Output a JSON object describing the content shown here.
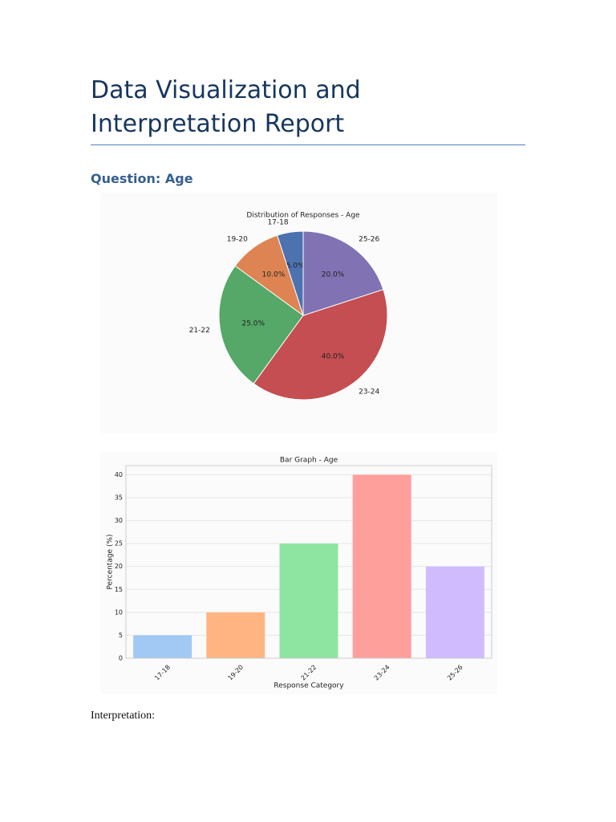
{
  "title": "Data Visualization and Interpretation Report",
  "question": "Question: Age",
  "chart_data": [
    {
      "type": "pie",
      "title": "Distribution of Responses - Age",
      "categories": [
        "17-18",
        "19-20",
        "21-22",
        "23-24",
        "25-26"
      ],
      "values": [
        5,
        10,
        25,
        40,
        20
      ],
      "value_labels": [
        "5.0%",
        "10.0%",
        "25.0%",
        "40.0%",
        "20.0%"
      ],
      "colors": [
        "#4c72b0",
        "#dd8452",
        "#55a868",
        "#c44e52",
        "#8172b3"
      ]
    },
    {
      "type": "bar",
      "title": "Bar Graph - Age",
      "x_label": "Response Category",
      "y_label": "Percentage (%)",
      "categories": [
        "17-18",
        "19-20",
        "21-22",
        "23-24",
        "25-26"
      ],
      "values": [
        5,
        10,
        25,
        40,
        20
      ],
      "colors": [
        "#a1c9f4",
        "#ffb482",
        "#8de5a1",
        "#ff9f9b",
        "#d0bbff"
      ],
      "ylim": [
        0,
        42
      ],
      "yticks": [
        0,
        5,
        10,
        15,
        20,
        25,
        30,
        35,
        40
      ],
      "grid": true
    }
  ],
  "interpretation": "Interpretation:"
}
